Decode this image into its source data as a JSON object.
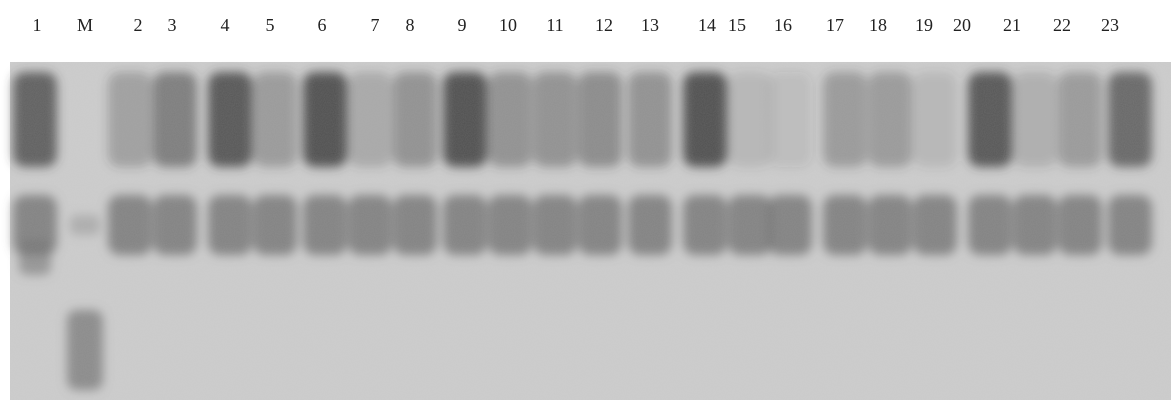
{
  "lanes": [
    "1",
    "M",
    "2",
    "3",
    "4",
    "5",
    "6",
    "7",
    "8",
    "9",
    "10",
    "11",
    "12",
    "13",
    "14",
    "15",
    "16",
    "17",
    "18",
    "19",
    "20",
    "21",
    "22",
    "23"
  ]
}
